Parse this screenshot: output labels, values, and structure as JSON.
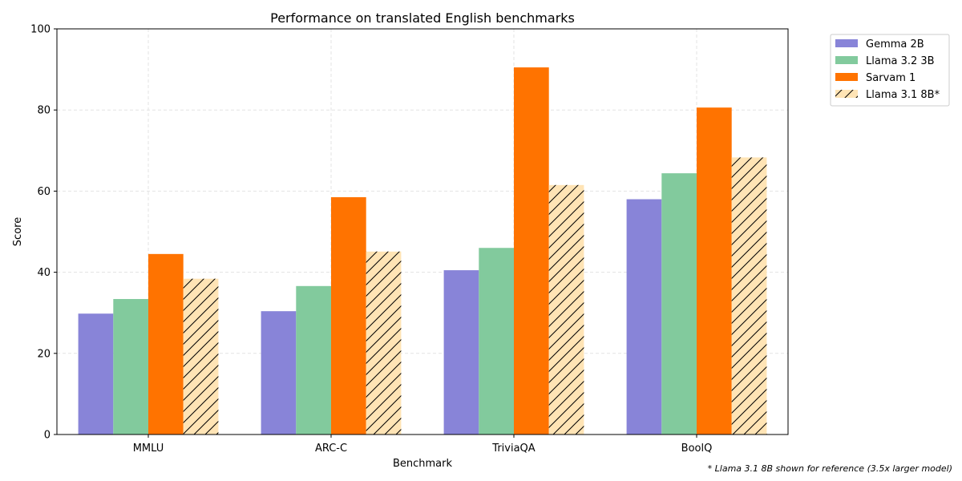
{
  "chart_data": {
    "type": "bar",
    "title": "Performance on translated English benchmarks",
    "xlabel": "Benchmark",
    "ylabel": "Score",
    "ylim": [
      0,
      100
    ],
    "yticks": [
      0,
      20,
      40,
      60,
      80,
      100
    ],
    "grid": true,
    "legend_position": "outside-top-right",
    "categories": [
      "MMLU",
      "ARC-C",
      "TriviaQA",
      "BoolQ"
    ],
    "series": [
      {
        "name": "Gemma 2B",
        "color": "#8884d8",
        "hatch": false,
        "values": [
          29.8,
          30.4,
          40.5,
          58.0
        ]
      },
      {
        "name": "Llama 3.2 3B",
        "color": "#82ca9d",
        "hatch": false,
        "values": [
          33.4,
          36.6,
          46.0,
          64.4
        ]
      },
      {
        "name": "Sarvam 1",
        "color": "#ff7300",
        "hatch": false,
        "values": [
          44.5,
          58.5,
          90.5,
          80.6
        ]
      },
      {
        "name": "Llama 3.1 8B*",
        "color": "#ffe4b5",
        "hatch": true,
        "values": [
          38.4,
          45.1,
          61.5,
          68.3
        ]
      }
    ],
    "footnote": "* Llama 3.1 8B shown for reference (3.5x larger model)"
  }
}
